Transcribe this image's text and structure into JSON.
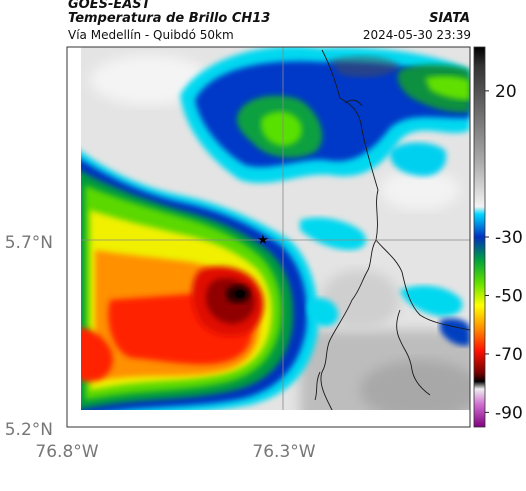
{
  "header": {
    "satellite": "GOES-EAST",
    "product": "Temperatura de Brillo CH13",
    "region": "Vía Medellín - Quibdó 50km",
    "source": "SIATA",
    "datetime": "2024-05-30 23:39"
  },
  "map": {
    "lat_labels": [
      "5.7°N",
      "5.2°N"
    ],
    "lon_labels": [
      "76.8°W",
      "76.3°W"
    ],
    "marker_icon": "star-icon"
  },
  "colorbar": {
    "tick_labels": [
      "20",
      "-30",
      "-50",
      "-70",
      "-90"
    ],
    "tick_values": [
      20,
      -30,
      -50,
      -70,
      -90
    ],
    "range": [
      -95,
      35
    ]
  }
}
